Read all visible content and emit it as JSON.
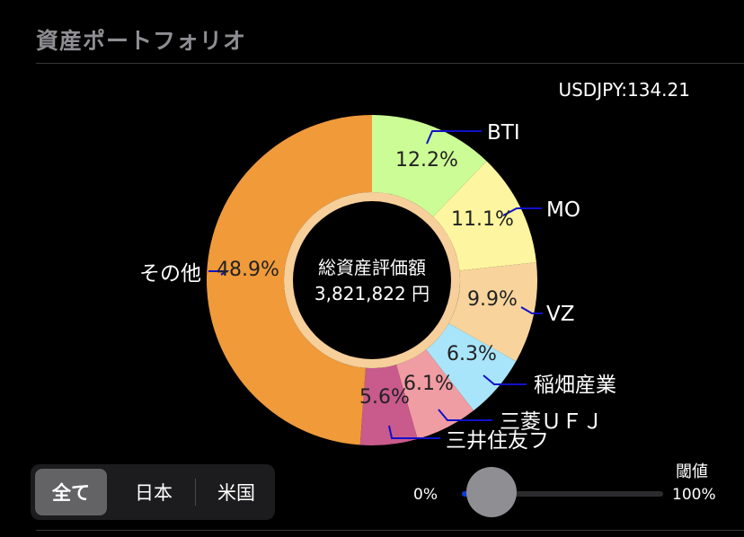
{
  "header": {
    "title": "資産ポートフォリオ"
  },
  "fx_rate": "USDJPY:134.21",
  "center": {
    "label": "総資産評価額",
    "value": "3,821,822 円"
  },
  "chart_data": {
    "type": "pie",
    "variant": "donut",
    "slices": [
      {
        "label": "BTI",
        "percent": 12.2,
        "percent_label": "12.2%",
        "color": "#ccfc95"
      },
      {
        "label": "MO",
        "percent": 11.1,
        "percent_label": "11.1%",
        "color": "#fdf59f"
      },
      {
        "label": "VZ",
        "percent": 9.9,
        "percent_label": "9.9%",
        "color": "#f8d49c"
      },
      {
        "label": "稲畑産業",
        "percent": 6.3,
        "percent_label": "6.3%",
        "color": "#a9e5fa"
      },
      {
        "label": "三菱ＵＦＪ",
        "percent": 6.1,
        "percent_label": "6.1%",
        "color": "#f09ca3"
      },
      {
        "label": "三井住友フ",
        "percent": 5.6,
        "percent_label": "5.6%",
        "color": "#c85a8c"
      },
      {
        "label": "その他",
        "percent": 48.9,
        "percent_label": "48.9%",
        "color": "#f09a3a"
      }
    ],
    "legend": "callout-labels",
    "leader_color": "#1010c8"
  },
  "filter": {
    "tabs": [
      "全て",
      "日本",
      "米国"
    ],
    "selected": "全て"
  },
  "threshold": {
    "label": "閾値",
    "min_label": "0%",
    "max_label": "100%",
    "value": 0
  }
}
